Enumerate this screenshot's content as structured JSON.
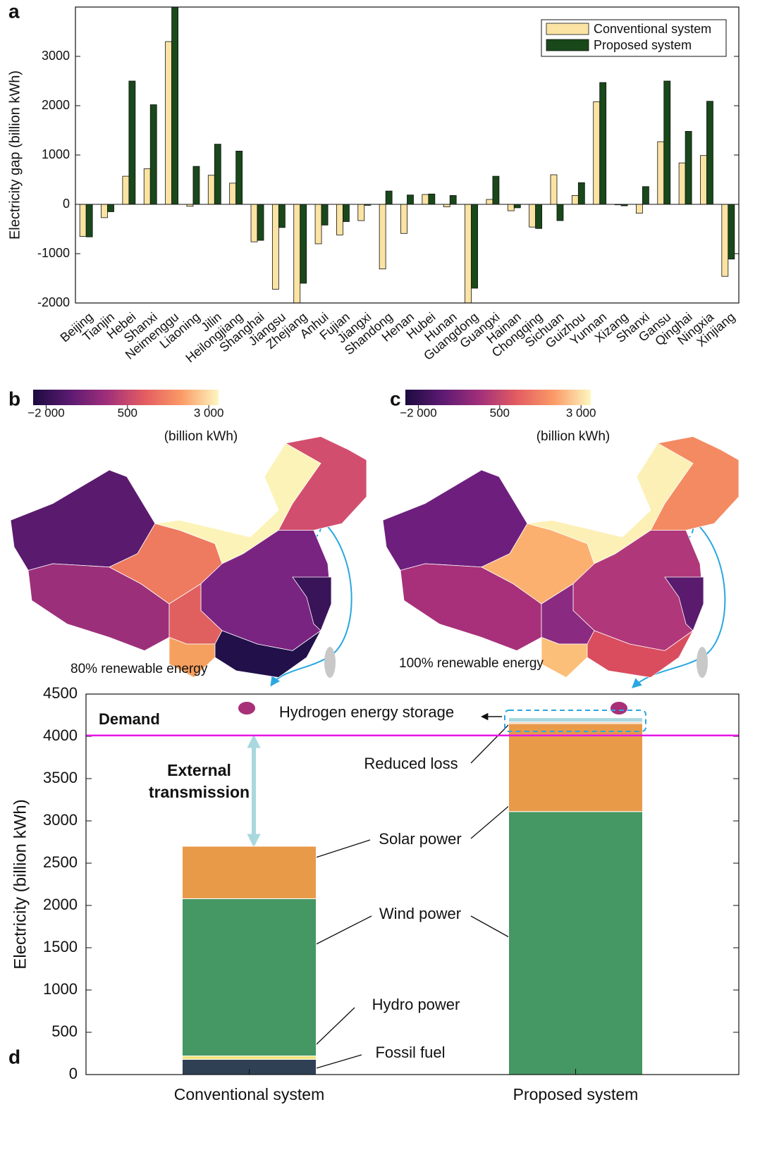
{
  "chart_data": [
    {
      "type": "bar",
      "panel_label": "a",
      "y_label": "Electricity gap (billion kWh)",
      "categories": [
        "Beijing",
        "Tianjin",
        "Hebei",
        "Shanxi",
        "Neimenggu",
        "Liaoning",
        "Jilin",
        "Heilongjiang",
        "Shanghai",
        "Jiangsu",
        "Zhejiang",
        "Anhui",
        "Fujian",
        "Jiangxi",
        "Shandong",
        "Henan",
        "Hubei",
        "Hunan",
        "Guangdong",
        "Guangxi",
        "Hainan",
        "Chongqing",
        "Sichuan",
        "Guizhou",
        "Yunnan",
        "Xizang",
        "Shanxi",
        "Gansu",
        "Qinghai",
        "Ningxia",
        "Xinjiang"
      ],
      "series": [
        {
          "name": "Conventional  system",
          "color": "#fbe3a3",
          "values": [
            -650,
            -270,
            570,
            720,
            3300,
            -40,
            590,
            430,
            -760,
            -1720,
            -2000,
            -800,
            -620,
            -330,
            -1310,
            -590,
            200,
            -50,
            -2000,
            100,
            -130,
            -460,
            600,
            180,
            2080,
            -10,
            -180,
            1270,
            840,
            990,
            -1460
          ]
        },
        {
          "name": "Proposed system",
          "color": "#19481a",
          "values": [
            -660,
            -150,
            2500,
            2020,
            4000,
            770,
            1220,
            1080,
            -730,
            -470,
            -1600,
            -420,
            -350,
            -20,
            270,
            190,
            210,
            180,
            -1700,
            570,
            -70,
            -490,
            -330,
            440,
            2470,
            -30,
            360,
            2500,
            1480,
            2090,
            -1110
          ]
        }
      ],
      "ylim": [
        -2000,
        4000
      ],
      "yticks": [
        -2000,
        -1000,
        0,
        1000,
        2000,
        3000
      ],
      "legend": "upper right"
    },
    {
      "type": "map",
      "panel_label": "b",
      "colorbar_unit": "(billion kWh)",
      "caption": "80% renewable energy",
      "colorbar_lim": [
        -2400,
        3300
      ],
      "colorbar_ticks": [
        {
          "value": -2000,
          "label": "−2 000"
        },
        500,
        {
          "value": 3000,
          "label": "3 000"
        }
      ],
      "colormap": [
        "#1c0b40",
        "#5c1a72",
        "#a12f7a",
        "#e35c62",
        "#fb9a66",
        "#fcf7c0"
      ]
    },
    {
      "type": "map",
      "panel_label": "c",
      "colorbar_unit": "(billion kWh)",
      "caption": "100% renewable energy",
      "colorbar_lim": [
        -2400,
        3300
      ],
      "colorbar_ticks": [
        {
          "value": -2000,
          "label": "−2 000"
        },
        500,
        {
          "value": 3000,
          "label": "3 000"
        }
      ],
      "colormap": [
        "#1c0b40",
        "#5c1a72",
        "#a12f7a",
        "#e35c62",
        "#fb9a66",
        "#fcf7c0"
      ]
    },
    {
      "type": "stacked_bar",
      "panel_label": "d",
      "y_label": "Electricity (billion kWh)",
      "categories": [
        "Conventional  system",
        "Proposed system"
      ],
      "series": [
        {
          "name": "Fossil fuel",
          "color": "#2f4054",
          "values": [
            180,
            0
          ]
        },
        {
          "name": "Hydro power",
          "color": "#f5e47a",
          "values": [
            40,
            0
          ]
        },
        {
          "name": "Wind power",
          "color": "#459763",
          "values": [
            1860,
            3110
          ]
        },
        {
          "name": "Solar power",
          "color": "#e89a48",
          "values": [
            620,
            1040
          ]
        },
        {
          "name": "Reduced loss",
          "color": "#f3c9ab",
          "values": [
            0,
            20
          ]
        },
        {
          "name": "Hydrogen energy storage",
          "color": "#a9d8df",
          "values": [
            0,
            50
          ]
        }
      ],
      "demand": {
        "label": "Demand",
        "value": 4010,
        "color": "#e617e6"
      },
      "annotation": "External transmission",
      "ylim": [
        0,
        4500
      ],
      "yticks": [
        0,
        500,
        1000,
        1500,
        2000,
        2500,
        3000,
        3500,
        4000,
        4500
      ]
    }
  ]
}
